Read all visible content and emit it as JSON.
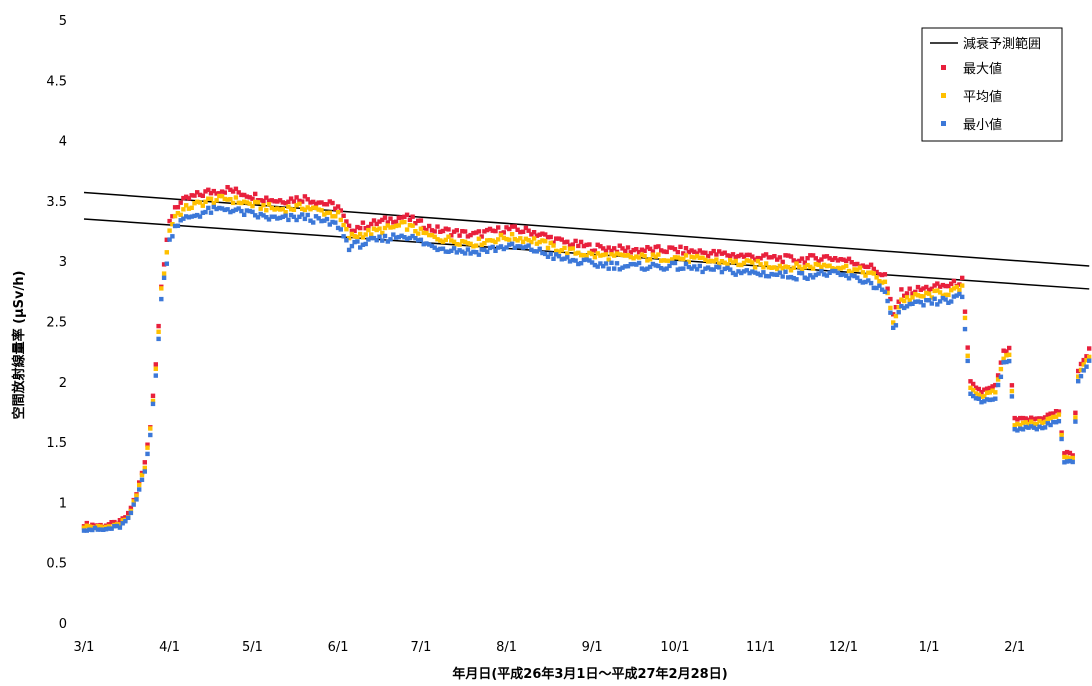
{
  "chart_data": {
    "type": "scatter",
    "xlabel": "年月日(平成26年3月1日～平成27年2月28日)",
    "ylabel": "空間放射線量率 (μSv/h)",
    "x_range": [
      "2014-03-01",
      "2015-02-28"
    ],
    "ylim": [
      0,
      5
    ],
    "y_ticks": [
      "0",
      "0.5",
      "1",
      "1.5",
      "2",
      "2.5",
      "3",
      "3.5",
      "4",
      "4.5",
      "5"
    ],
    "x_ticks": [
      {
        "date": "2014-03-01",
        "label": "3/1"
      },
      {
        "date": "2014-04-01",
        "label": "4/1"
      },
      {
        "date": "2014-05-01",
        "label": "5/1"
      },
      {
        "date": "2014-06-01",
        "label": "6/1"
      },
      {
        "date": "2014-07-01",
        "label": "7/1"
      },
      {
        "date": "2014-08-01",
        "label": "8/1"
      },
      {
        "date": "2014-09-01",
        "label": "9/1"
      },
      {
        "date": "2014-10-01",
        "label": "10/1"
      },
      {
        "date": "2014-11-01",
        "label": "11/1"
      },
      {
        "date": "2014-12-01",
        "label": "12/1"
      },
      {
        "date": "2015-01-01",
        "label": "1/1"
      },
      {
        "date": "2015-02-01",
        "label": "2/1"
      }
    ],
    "grid": false,
    "legend_position": "top-right",
    "legend": [
      {
        "label": "減衰予測範囲",
        "marker": "line",
        "color": "#000000"
      },
      {
        "label": "最大値",
        "marker": "square",
        "color": "#e8203c"
      },
      {
        "label": "平均値",
        "marker": "square",
        "color": "#ffc000"
      },
      {
        "label": "最小値",
        "marker": "square",
        "color": "#3c78d8"
      }
    ],
    "lines": [
      {
        "name": "減衰予測範囲",
        "points": [
          [
            "2014-03-01",
            3.57
          ],
          [
            "2015-02-28",
            2.96
          ]
        ]
      },
      {
        "name": "減衰予測範囲",
        "points": [
          [
            "2014-03-01",
            3.35
          ],
          [
            "2015-02-28",
            2.77
          ]
        ]
      }
    ],
    "series": [
      {
        "name": "最大値",
        "color": "#e8203c",
        "offset": 0.07
      },
      {
        "name": "平均値",
        "color": "#ffc000",
        "offset": 0.0
      },
      {
        "name": "最小値",
        "color": "#3c78d8",
        "offset": -0.08
      }
    ],
    "mean_profile": [
      [
        "2014-03-01",
        0.8
      ],
      [
        "2014-03-08",
        0.79
      ],
      [
        "2014-03-14",
        0.82
      ],
      [
        "2014-03-17",
        0.88
      ],
      [
        "2014-03-20",
        1.05
      ],
      [
        "2014-03-23",
        1.3
      ],
      [
        "2014-03-25",
        1.6
      ],
      [
        "2014-03-27",
        2.1
      ],
      [
        "2014-03-29",
        2.75
      ],
      [
        "2014-04-01",
        3.25
      ],
      [
        "2014-04-03",
        3.38
      ],
      [
        "2014-04-08",
        3.45
      ],
      [
        "2014-04-15",
        3.5
      ],
      [
        "2014-04-22",
        3.52
      ],
      [
        "2014-05-01",
        3.47
      ],
      [
        "2014-05-10",
        3.43
      ],
      [
        "2014-05-20",
        3.45
      ],
      [
        "2014-06-01",
        3.38
      ],
      [
        "2014-06-05",
        3.2
      ],
      [
        "2014-06-15",
        3.25
      ],
      [
        "2014-06-25",
        3.3
      ],
      [
        "2014-07-05",
        3.2
      ],
      [
        "2014-07-20",
        3.15
      ],
      [
        "2014-08-01",
        3.2
      ],
      [
        "2014-08-10",
        3.18
      ],
      [
        "2014-08-20",
        3.1
      ],
      [
        "2014-09-01",
        3.05
      ],
      [
        "2014-09-15",
        3.03
      ],
      [
        "2014-10-01",
        3.03
      ],
      [
        "2014-10-15",
        3.0
      ],
      [
        "2014-11-01",
        2.97
      ],
      [
        "2014-11-15",
        2.95
      ],
      [
        "2014-11-25",
        2.97
      ],
      [
        "2014-12-01",
        2.95
      ],
      [
        "2014-12-10",
        2.9
      ],
      [
        "2014-12-16",
        2.82
      ],
      [
        "2014-12-19",
        2.5
      ],
      [
        "2014-12-22",
        2.68
      ],
      [
        "2015-01-01",
        2.72
      ],
      [
        "2015-01-10",
        2.75
      ],
      [
        "2015-01-13",
        2.78
      ],
      [
        "2015-01-16",
        1.95
      ],
      [
        "2015-01-20",
        1.88
      ],
      [
        "2015-01-25",
        1.92
      ],
      [
        "2015-01-28",
        2.2
      ],
      [
        "2015-01-30",
        2.22
      ],
      [
        "2015-02-01",
        1.65
      ],
      [
        "2015-02-10",
        1.66
      ],
      [
        "2015-02-17",
        1.72
      ],
      [
        "2015-02-19",
        1.38
      ],
      [
        "2015-02-22",
        1.37
      ],
      [
        "2015-02-24",
        2.05
      ],
      [
        "2015-02-28",
        2.22
      ]
    ]
  }
}
